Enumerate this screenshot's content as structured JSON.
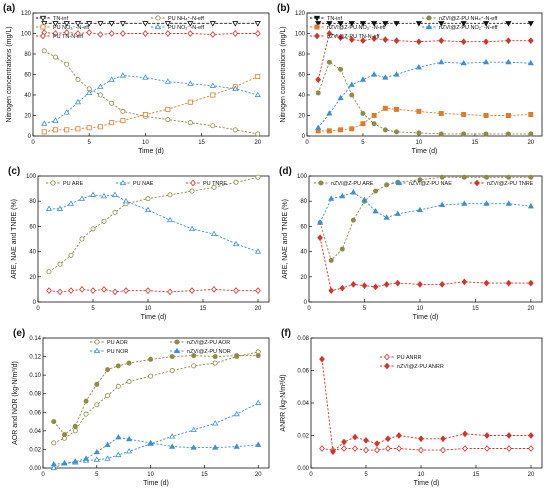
{
  "colors": {
    "olive": "#8f8a4a",
    "blue": "#3f8fd0",
    "orange": "#e07b2a",
    "red": "#d4332b",
    "black": "#111111"
  },
  "chart_data": [
    {
      "panel_label": "(a)",
      "type": "line",
      "xlabel": "Time (d)",
      "ylabel": "Nitrogen concentrations (mg/L)",
      "xlim": [
        0,
        21
      ],
      "ylim": [
        0,
        120
      ],
      "xticks": [
        0,
        5,
        10,
        15,
        20
      ],
      "yticks": [
        0,
        20,
        40,
        60,
        80,
        100,
        120
      ],
      "series": [
        {
          "name": "TN-inf",
          "color": "#111111",
          "marker": "triangle-down",
          "filled": false,
          "x": [
            1,
            2,
            3,
            4,
            5,
            6,
            7,
            8,
            10,
            12,
            14,
            16,
            18,
            20
          ],
          "y": [
            110,
            110,
            110,
            110,
            110,
            110,
            110,
            110,
            110,
            110,
            110,
            110,
            110,
            110
          ]
        },
        {
          "name": "PU NH₄⁺-N-eff",
          "color": "#8f8a4a",
          "marker": "circle",
          "filled": false,
          "x": [
            1,
            2,
            3,
            4,
            5,
            6,
            7,
            8,
            10,
            12,
            14,
            16,
            18,
            20
          ],
          "y": [
            83,
            77,
            70,
            55,
            46,
            40,
            32,
            24,
            19,
            16,
            13,
            10,
            6,
            2
          ]
        },
        {
          "name": "PU NO₃⁻-N-eff",
          "color": "#e07b2a",
          "marker": "square",
          "filled": false,
          "x": [
            1,
            2,
            3,
            4,
            5,
            6,
            7,
            8,
            10,
            12,
            14,
            16,
            18,
            20
          ],
          "y": [
            4,
            6,
            6,
            7,
            8,
            9,
            13,
            15,
            21,
            26,
            33,
            40,
            48,
            58
          ]
        },
        {
          "name": "PU NO₂⁻-N-eff",
          "color": "#3f8fd0",
          "marker": "triangle-up",
          "filled": false,
          "x": [
            1,
            2,
            3,
            4,
            5,
            6,
            7,
            8,
            10,
            12,
            14,
            16,
            18,
            20
          ],
          "y": [
            12,
            15,
            23,
            33,
            42,
            48,
            55,
            59,
            57,
            53,
            51,
            49,
            46,
            40
          ]
        },
        {
          "name": "PU TN-N-eff",
          "color": "#d4332b",
          "marker": "diamond",
          "filled": false,
          "x": [
            1,
            2,
            3,
            4,
            5,
            6,
            7,
            8,
            10,
            12,
            14,
            16,
            18,
            20
          ],
          "y": [
            101,
            100,
            101,
            100,
            101,
            99,
            100,
            100,
            100,
            100,
            100,
            99,
            100,
            100
          ]
        }
      ]
    },
    {
      "panel_label": "(b)",
      "type": "line",
      "xlabel": "Time (d)",
      "ylabel": "Nitrogen concentrations (mg/L)",
      "xlim": [
        0,
        21
      ],
      "ylim": [
        0,
        120
      ],
      "xticks": [
        0,
        5,
        10,
        15,
        20
      ],
      "yticks": [
        0,
        20,
        40,
        60,
        80,
        100,
        120
      ],
      "series": [
        {
          "name": "TN-inf",
          "color": "#111111",
          "marker": "triangle-down",
          "filled": true,
          "x": [
            1,
            2,
            3,
            4,
            5,
            6,
            7,
            8,
            10,
            12,
            14,
            16,
            18,
            20
          ],
          "y": [
            110,
            110,
            110,
            110,
            110,
            110,
            110,
            110,
            110,
            110,
            110,
            110,
            110,
            110
          ]
        },
        {
          "name": "nZVI@Z-PU NH₄⁺-N-eff",
          "color": "#8f8a4a",
          "marker": "circle",
          "filled": true,
          "x": [
            1,
            2,
            3,
            4,
            5,
            6,
            7,
            8,
            10,
            12,
            14,
            16,
            18,
            20
          ],
          "y": [
            42,
            72,
            65,
            40,
            22,
            12,
            6,
            4,
            3,
            2,
            2,
            2,
            2,
            2
          ]
        },
        {
          "name": "nZVI@Z-PU NO₃⁻-N-eff",
          "color": "#e07b2a",
          "marker": "square",
          "filled": true,
          "x": [
            1,
            2,
            3,
            4,
            5,
            6,
            7,
            8,
            10,
            12,
            14,
            16,
            18,
            20
          ],
          "y": [
            5,
            5,
            6,
            7,
            12,
            20,
            27,
            26,
            24,
            22,
            21,
            20,
            20,
            21
          ]
        },
        {
          "name": "nZVI@Z-PU NO₂⁻-N-eff",
          "color": "#3f8fd0",
          "marker": "triangle-up",
          "filled": true,
          "x": [
            1,
            2,
            3,
            4,
            5,
            6,
            7,
            8,
            10,
            12,
            14,
            16,
            18,
            20
          ],
          "y": [
            8,
            22,
            37,
            50,
            55,
            60,
            57,
            60,
            67,
            72,
            71,
            72,
            72,
            71
          ]
        },
        {
          "name": "nZVI@Z-PU TN-N-eff",
          "color": "#d4332b",
          "marker": "diamond",
          "filled": true,
          "x": [
            1,
            2,
            3,
            4,
            5,
            6,
            7,
            8,
            10,
            12,
            14,
            16,
            18,
            20
          ],
          "y": [
            55,
            100,
            96,
            94,
            93,
            95,
            94,
            93,
            92,
            93,
            92,
            92,
            93,
            93
          ]
        }
      ]
    },
    {
      "panel_label": "(c)",
      "type": "line",
      "xlabel": "Time (d)",
      "ylabel": "ARE, NAE and TNRE (%)",
      "xlim": [
        0,
        21
      ],
      "ylim": [
        0,
        100
      ],
      "xticks": [
        0,
        5,
        10,
        15,
        20
      ],
      "yticks": [
        0,
        20,
        40,
        60,
        80,
        100
      ],
      "series": [
        {
          "name": "PU ARE",
          "color": "#8f8a4a",
          "marker": "circle",
          "filled": false,
          "x": [
            1,
            2,
            3,
            4,
            5,
            6,
            7,
            8,
            10,
            12,
            14,
            16,
            18,
            20
          ],
          "y": [
            24,
            30,
            37,
            50,
            58,
            64,
            71,
            78,
            82,
            85,
            88,
            91,
            95,
            99
          ]
        },
        {
          "name": "PU NAE",
          "color": "#3f8fd0",
          "marker": "triangle-up",
          "filled": false,
          "x": [
            1,
            2,
            3,
            4,
            5,
            6,
            7,
            8,
            10,
            12,
            14,
            16,
            18,
            20
          ],
          "y": [
            74,
            74,
            78,
            82,
            85,
            84,
            85,
            80,
            73,
            65,
            58,
            54,
            46,
            40
          ]
        },
        {
          "name": "PU TNRE",
          "color": "#d4332b",
          "marker": "diamond",
          "filled": false,
          "x": [
            1,
            2,
            3,
            4,
            5,
            6,
            7,
            8,
            10,
            12,
            14,
            16,
            18,
            20
          ],
          "y": [
            9,
            8,
            9,
            10,
            9,
            10,
            8,
            9,
            9,
            8,
            9,
            10,
            9,
            9
          ]
        }
      ]
    },
    {
      "panel_label": "(d)",
      "type": "line",
      "xlabel": "Time (d)",
      "ylabel": "ARE, NAE and TNRE (%)",
      "xlim": [
        0,
        21
      ],
      "ylim": [
        0,
        100
      ],
      "xticks": [
        0,
        5,
        10,
        15,
        20
      ],
      "yticks": [
        0,
        20,
        40,
        60,
        80,
        100
      ],
      "series": [
        {
          "name": "nZVI@Z-PU ARE",
          "color": "#8f8a4a",
          "marker": "circle",
          "filled": true,
          "x": [
            1,
            2,
            3,
            4,
            5,
            6,
            7,
            8,
            10,
            12,
            14,
            16,
            18,
            20
          ],
          "y": [
            63,
            33,
            42,
            65,
            80,
            88,
            93,
            95,
            97,
            99,
            99,
            99,
            99,
            99
          ]
        },
        {
          "name": "nZVI@Z-PU NAE",
          "color": "#3f8fd0",
          "marker": "triangle-up",
          "filled": true,
          "x": [
            1,
            2,
            3,
            4,
            5,
            6,
            7,
            8,
            10,
            12,
            14,
            16,
            18,
            20
          ],
          "y": [
            63,
            82,
            84,
            87,
            81,
            72,
            67,
            70,
            73,
            77,
            78,
            78,
            78,
            76
          ]
        },
        {
          "name": "nZVI@Z-PU TNRE",
          "color": "#d4332b",
          "marker": "diamond",
          "filled": true,
          "x": [
            1,
            2,
            3,
            4,
            5,
            6,
            7,
            8,
            10,
            12,
            14,
            16,
            18,
            20
          ],
          "y": [
            51,
            9,
            11,
            14,
            13,
            12,
            14,
            15,
            14,
            14,
            16,
            15,
            15,
            15
          ]
        }
      ]
    },
    {
      "panel_label": "(e)",
      "type": "line",
      "xlabel": "Time (d)",
      "ylabel": "AOR and NOR (kg-N/m³/d)",
      "xlim": [
        0,
        21
      ],
      "ylim": [
        0,
        0.14
      ],
      "xticks": [
        0,
        5,
        10,
        15,
        20
      ],
      "yticks": [
        0.0,
        0.02,
        0.04,
        0.06,
        0.08,
        0.1,
        0.12,
        0.14
      ],
      "series": [
        {
          "name": "PU AOR",
          "color": "#8f8a4a",
          "marker": "circle",
          "filled": false,
          "x": [
            1,
            2,
            3,
            4,
            5,
            6,
            7,
            8,
            10,
            12,
            14,
            16,
            18,
            20
          ],
          "y": [
            0.027,
            0.032,
            0.04,
            0.058,
            0.068,
            0.078,
            0.088,
            0.093,
            0.099,
            0.105,
            0.11,
            0.113,
            0.12,
            0.125
          ]
        },
        {
          "name": "nZVI@Z-PU AOR",
          "color": "#8f8a4a",
          "marker": "circle",
          "filled": true,
          "x": [
            1,
            2,
            3,
            4,
            5,
            6,
            7,
            8,
            10,
            12,
            14,
            16,
            18,
            20
          ],
          "y": [
            0.05,
            0.036,
            0.045,
            0.072,
            0.09,
            0.106,
            0.11,
            0.113,
            0.117,
            0.12,
            0.121,
            0.12,
            0.121,
            0.121
          ]
        },
        {
          "name": "PU NOR",
          "color": "#3f8fd0",
          "marker": "triangle-up",
          "filled": false,
          "x": [
            1,
            2,
            3,
            4,
            5,
            6,
            7,
            8,
            10,
            12,
            14,
            16,
            18,
            20
          ],
          "y": [
            0.0,
            0.005,
            0.006,
            0.008,
            0.009,
            0.01,
            0.014,
            0.018,
            0.026,
            0.034,
            0.041,
            0.048,
            0.058,
            0.07
          ]
        },
        {
          "name": "nZVI@Z-PU NOR",
          "color": "#3f8fd0",
          "marker": "triangle-up",
          "filled": true,
          "x": [
            1,
            2,
            3,
            4,
            5,
            6,
            7,
            8,
            10,
            12,
            14,
            16,
            18,
            20
          ],
          "y": [
            0.004,
            0.005,
            0.007,
            0.01,
            0.017,
            0.025,
            0.033,
            0.031,
            0.027,
            0.023,
            0.022,
            0.022,
            0.023,
            0.025
          ]
        }
      ]
    },
    {
      "panel_label": "(f)",
      "type": "line",
      "xlabel": "Time (d)",
      "ylabel": "ANRR (kg-N/m³/d)",
      "xlim": [
        0,
        21
      ],
      "ylim": [
        0,
        0.08
      ],
      "xticks": [
        0,
        5,
        10,
        15,
        20
      ],
      "yticks": [
        0.0,
        0.02,
        0.04,
        0.06,
        0.08
      ],
      "series": [
        {
          "name": "PU ANRR",
          "color": "#d4332b",
          "marker": "diamond",
          "filled": false,
          "x": [
            1,
            2,
            3,
            4,
            5,
            6,
            7,
            8,
            10,
            12,
            14,
            16,
            18,
            20
          ],
          "y": [
            0.012,
            0.011,
            0.012,
            0.012,
            0.011,
            0.011,
            0.012,
            0.012,
            0.011,
            0.011,
            0.012,
            0.012,
            0.012,
            0.012
          ]
        },
        {
          "name": "nZVI@Z-PU ANRR",
          "color": "#d4332b",
          "marker": "diamond",
          "filled": true,
          "x": [
            1,
            2,
            3,
            4,
            5,
            6,
            7,
            8,
            10,
            12,
            14,
            16,
            18,
            20
          ],
          "y": [
            0.067,
            0.01,
            0.016,
            0.019,
            0.017,
            0.015,
            0.018,
            0.02,
            0.018,
            0.018,
            0.021,
            0.02,
            0.02,
            0.02
          ]
        }
      ]
    }
  ]
}
